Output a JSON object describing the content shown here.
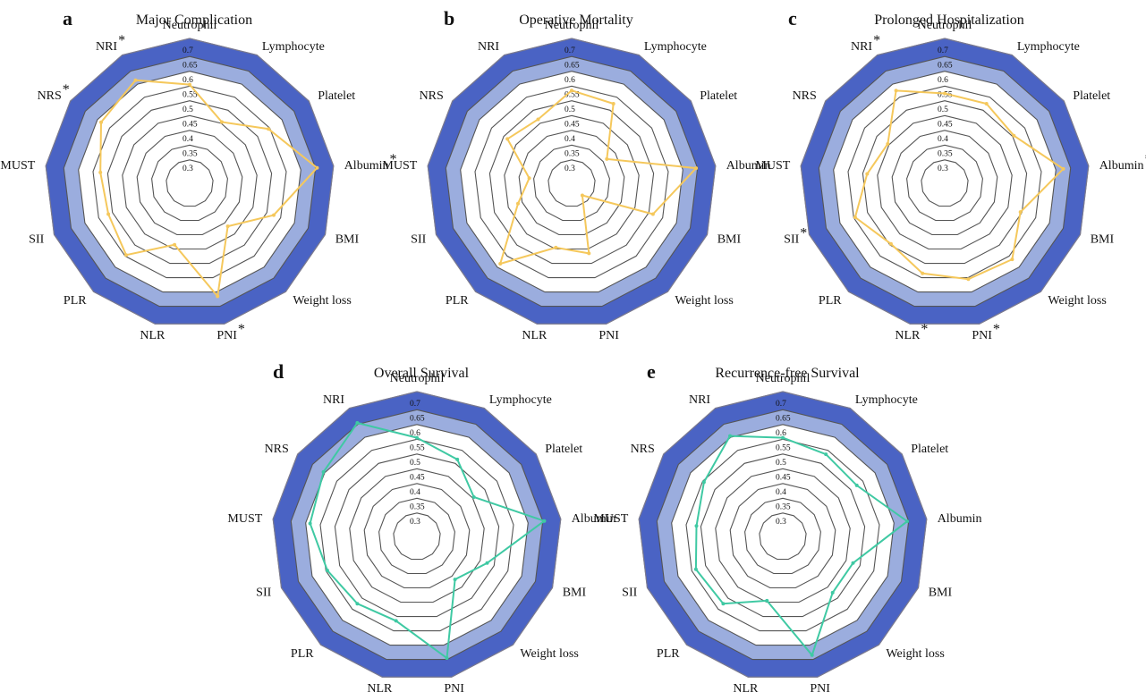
{
  "colors": {
    "outer_band": "#4a63c4",
    "inner_band": "#9badde",
    "grid_line": "#555555",
    "series_yellow": "#f5c85c",
    "series_teal": "#3fc9a3"
  },
  "chart_data": [
    {
      "type": "radar",
      "panel": "a",
      "title": "Major Complication",
      "axes": [
        "Neutrophil",
        "Lymphocyte",
        "Platelet",
        "Albumin",
        "BMI",
        "Weight loss",
        "PNI",
        "NLR",
        "PLR",
        "SII",
        "MUST",
        "NRS",
        "NRI"
      ],
      "axis_stars": [
        "",
        "",
        "",
        "*",
        "",
        "",
        "*",
        "",
        "",
        "",
        "",
        "*",
        "*"
      ],
      "ticks": [
        "0.3",
        "0.35",
        "0.4",
        "0.45",
        "0.5",
        "0.55",
        "0.6",
        "0.65",
        "0.7"
      ],
      "range": [
        0.3,
        0.7
      ],
      "series_color": "series_yellow",
      "values": [
        0.58,
        0.48,
        0.57,
        0.68,
        0.55,
        0.44,
        0.64,
        0.46,
        0.57,
        0.54,
        0.55,
        0.61,
        0.64
      ]
    },
    {
      "type": "radar",
      "panel": "b",
      "title": "Operative Mortality",
      "axes": [
        "Neutrophil",
        "Lymphocyte",
        "Platelet",
        "Albumin",
        "BMI",
        "Weight loss",
        "PNI",
        "NLR",
        "PLR",
        "SII",
        "MUST",
        "NRS",
        "NRI"
      ],
      "axis_stars": [
        "",
        "",
        "",
        "",
        "",
        "",
        "",
        "",
        "",
        "",
        "",
        "",
        ""
      ],
      "ticks": [
        "0.3",
        "0.35",
        "0.4",
        "0.45",
        "0.5",
        "0.55",
        "0.6",
        "0.65",
        "0.7"
      ],
      "range": [
        0.3,
        0.7
      ],
      "series_color": "series_yellow",
      "values": [
        0.56,
        0.55,
        0.39,
        0.67,
        0.54,
        0.3,
        0.49,
        0.47,
        0.61,
        0.44,
        0.39,
        0.51,
        0.49
      ]
    },
    {
      "type": "radar",
      "panel": "c",
      "title": "Prolonged Hospitalization",
      "axes": [
        "Neutrophil",
        "Lymphocyte",
        "Platelet",
        "Albumin",
        "BMI",
        "Weight loss",
        "PNI",
        "NLR",
        "PLR",
        "SII",
        "MUST",
        "NRS",
        "NRI"
      ],
      "axis_stars": [
        "",
        "",
        "",
        "*",
        "",
        "",
        "*",
        "*",
        "",
        "*",
        "",
        "",
        "*"
      ],
      "ticks": [
        "0.3",
        "0.35",
        "0.4",
        "0.45",
        "0.5",
        "0.55",
        "0.6",
        "0.65",
        "0.7"
      ],
      "range": [
        0.3,
        0.7
      ],
      "series_color": "series_yellow",
      "values": [
        0.55,
        0.55,
        0.53,
        0.65,
        0.52,
        0.59,
        0.58,
        0.56,
        0.52,
        0.57,
        0.51,
        0.48,
        0.6
      ]
    },
    {
      "type": "radar",
      "panel": "d",
      "title": "Overall Survival",
      "axes": [
        "Neutrophil",
        "Lymphocyte",
        "Platelet",
        "Albumin",
        "BMI",
        "Weight loss",
        "PNI",
        "NLR",
        "PLR",
        "SII",
        "MUST",
        "NRS",
        "NRI"
      ],
      "axis_stars": [
        "",
        "",
        "",
        "",
        "",
        "",
        "",
        "",
        "",
        "",
        "",
        "",
        ""
      ],
      "ticks": [
        "0.3",
        "0.35",
        "0.4",
        "0.45",
        "0.5",
        "0.55",
        "0.6",
        "0.65",
        "0.7"
      ],
      "range": [
        0.3,
        0.7
      ],
      "series_color": "series_teal",
      "values": [
        0.58,
        0.54,
        0.48,
        0.68,
        0.5,
        0.44,
        0.67,
        0.54,
        0.55,
        0.57,
        0.61,
        0.63,
        0.68
      ]
    },
    {
      "type": "radar",
      "panel": "e",
      "title": "Recurrence-free Survival",
      "axes": [
        "Neutrophil",
        "Lymphocyte",
        "Platelet",
        "Albumin",
        "BMI",
        "Weight loss",
        "PNI",
        "NLR",
        "PLR",
        "SII",
        "MUST",
        "NRS",
        "NRI"
      ],
      "axis_stars": [
        "",
        "",
        "",
        "",
        "",
        "",
        "",
        "",
        "",
        "",
        "",
        "",
        ""
      ],
      "ticks": [
        "0.3",
        "0.35",
        "0.4",
        "0.45",
        "0.5",
        "0.55",
        "0.6",
        "0.65",
        "0.7"
      ],
      "range": [
        0.3,
        0.7
      ],
      "series_color": "series_teal",
      "values": [
        0.58,
        0.56,
        0.55,
        0.67,
        0.5,
        0.5,
        0.66,
        0.47,
        0.55,
        0.56,
        0.54,
        0.57,
        0.63
      ]
    }
  ]
}
